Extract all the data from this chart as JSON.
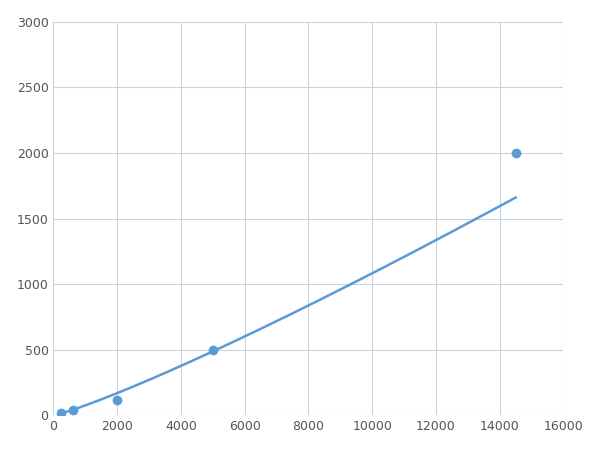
{
  "x": [
    250,
    625,
    2000,
    5000,
    14500
  ],
  "y": [
    20,
    40,
    120,
    500,
    2000
  ],
  "line_color": "#5b9bd5",
  "marker_color": "#5b9bd5",
  "marker_size": 6,
  "line_width": 1.8,
  "xlim": [
    0,
    16000
  ],
  "ylim": [
    0,
    3000
  ],
  "xticks": [
    0,
    2000,
    4000,
    6000,
    8000,
    10000,
    12000,
    14000,
    16000
  ],
  "yticks": [
    0,
    500,
    1000,
    1500,
    2000,
    2500,
    3000
  ],
  "grid_color": "#c8d4e0",
  "background_color": "#ffffff",
  "figsize": [
    6.0,
    4.5
  ],
  "dpi": 100
}
